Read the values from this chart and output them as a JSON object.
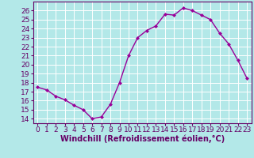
{
  "x": [
    0,
    1,
    2,
    3,
    4,
    5,
    6,
    7,
    8,
    9,
    10,
    11,
    12,
    13,
    14,
    15,
    16,
    17,
    18,
    19,
    20,
    21,
    22,
    23
  ],
  "y": [
    17.5,
    17.2,
    16.5,
    16.1,
    15.5,
    15.0,
    14.0,
    14.2,
    15.6,
    18.0,
    21.0,
    23.0,
    23.8,
    24.3,
    25.6,
    25.5,
    26.3,
    26.0,
    25.5,
    25.0,
    23.5,
    22.3,
    20.5,
    18.5
  ],
  "line_color": "#990099",
  "marker": "D",
  "marker_size": 2,
  "bg_color": "#b3e8e8",
  "grid_color": "#ffffff",
  "xlabel": "Windchill (Refroidissement éolien,°C)",
  "xlabel_color": "#660066",
  "tick_color": "#660066",
  "spine_color": "#660066",
  "ylim": [
    13.5,
    27.0
  ],
  "xlim": [
    -0.5,
    23.5
  ],
  "yticks": [
    14,
    15,
    16,
    17,
    18,
    19,
    20,
    21,
    22,
    23,
    24,
    25,
    26
  ],
  "xticks": [
    0,
    1,
    2,
    3,
    4,
    5,
    6,
    7,
    8,
    9,
    10,
    11,
    12,
    13,
    14,
    15,
    16,
    17,
    18,
    19,
    20,
    21,
    22,
    23
  ],
  "line_width": 1.0,
  "tick_fontsize": 6.5,
  "xlabel_fontsize": 7.0
}
